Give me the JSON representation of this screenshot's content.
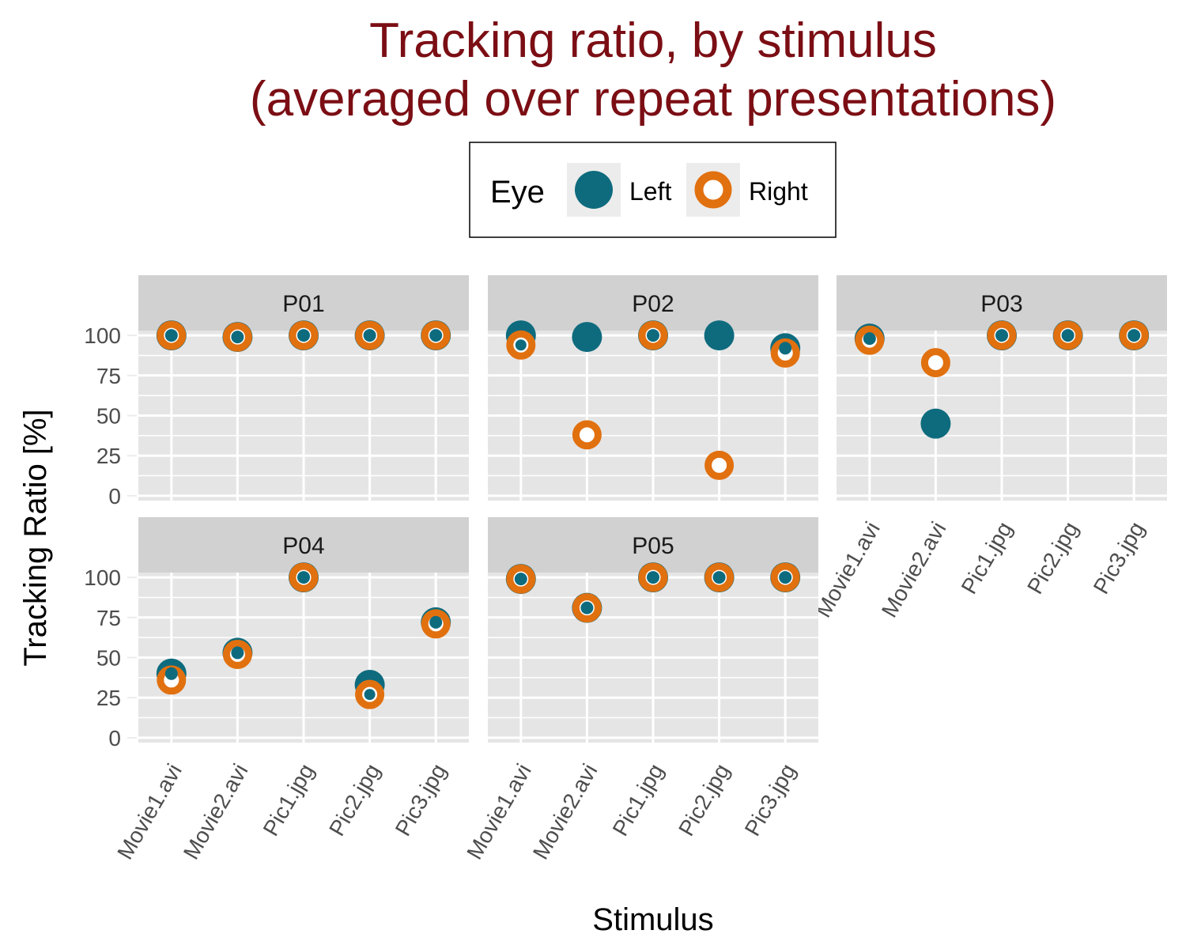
{
  "title_line1": "Tracking ratio, by stimulus",
  "title_line2": "(averaged over repeat presentations)",
  "legend": {
    "title": "Eye",
    "left_label": "Left",
    "right_label": "Right"
  },
  "colors": {
    "left": "#0e6b7e",
    "right": "#e1700f",
    "title": "#7b0e14",
    "panel_bg": "#e5e5e5",
    "strip_bg": "#d1d1d1"
  },
  "chart_data": {
    "type": "scatter",
    "facet_by": "participant",
    "xlabel": "Stimulus",
    "ylabel": "Tracking Ratio [%]",
    "categories": [
      "Movie1.avi",
      "Movie2.avi",
      "Pic1.jpg",
      "Pic2.jpg",
      "Pic3.jpg"
    ],
    "yticks": [
      0,
      25,
      50,
      75,
      100
    ],
    "ylim": [
      -3,
      103
    ],
    "grid": true,
    "legend_position": "top",
    "panels": [
      {
        "name": "P01",
        "series": [
          {
            "name": "Left",
            "values": [
              100,
              99,
              100,
              100,
              100
            ]
          },
          {
            "name": "Right",
            "values": [
              100,
              99,
              100,
              100,
              100
            ]
          }
        ]
      },
      {
        "name": "P02",
        "series": [
          {
            "name": "Left",
            "values": [
              100,
              99,
              100,
              100,
              92
            ]
          },
          {
            "name": "Right",
            "values": [
              94,
              38,
              100,
              19,
              89
            ]
          }
        ]
      },
      {
        "name": "P03",
        "series": [
          {
            "name": "Left",
            "values": [
              98,
              45,
              100,
              100,
              100
            ]
          },
          {
            "name": "Right",
            "values": [
              97,
              83,
              100,
              100,
              100
            ]
          }
        ]
      },
      {
        "name": "P04",
        "series": [
          {
            "name": "Left",
            "values": [
              40,
              53,
              100,
              33,
              72
            ]
          },
          {
            "name": "Right",
            "values": [
              36,
              52,
              100,
              27,
              71
            ]
          }
        ]
      },
      {
        "name": "P05",
        "series": [
          {
            "name": "Left",
            "values": [
              99,
              81,
              100,
              100,
              100
            ]
          },
          {
            "name": "Right",
            "values": [
              99,
              81,
              100,
              100,
              100
            ]
          }
        ]
      }
    ]
  }
}
